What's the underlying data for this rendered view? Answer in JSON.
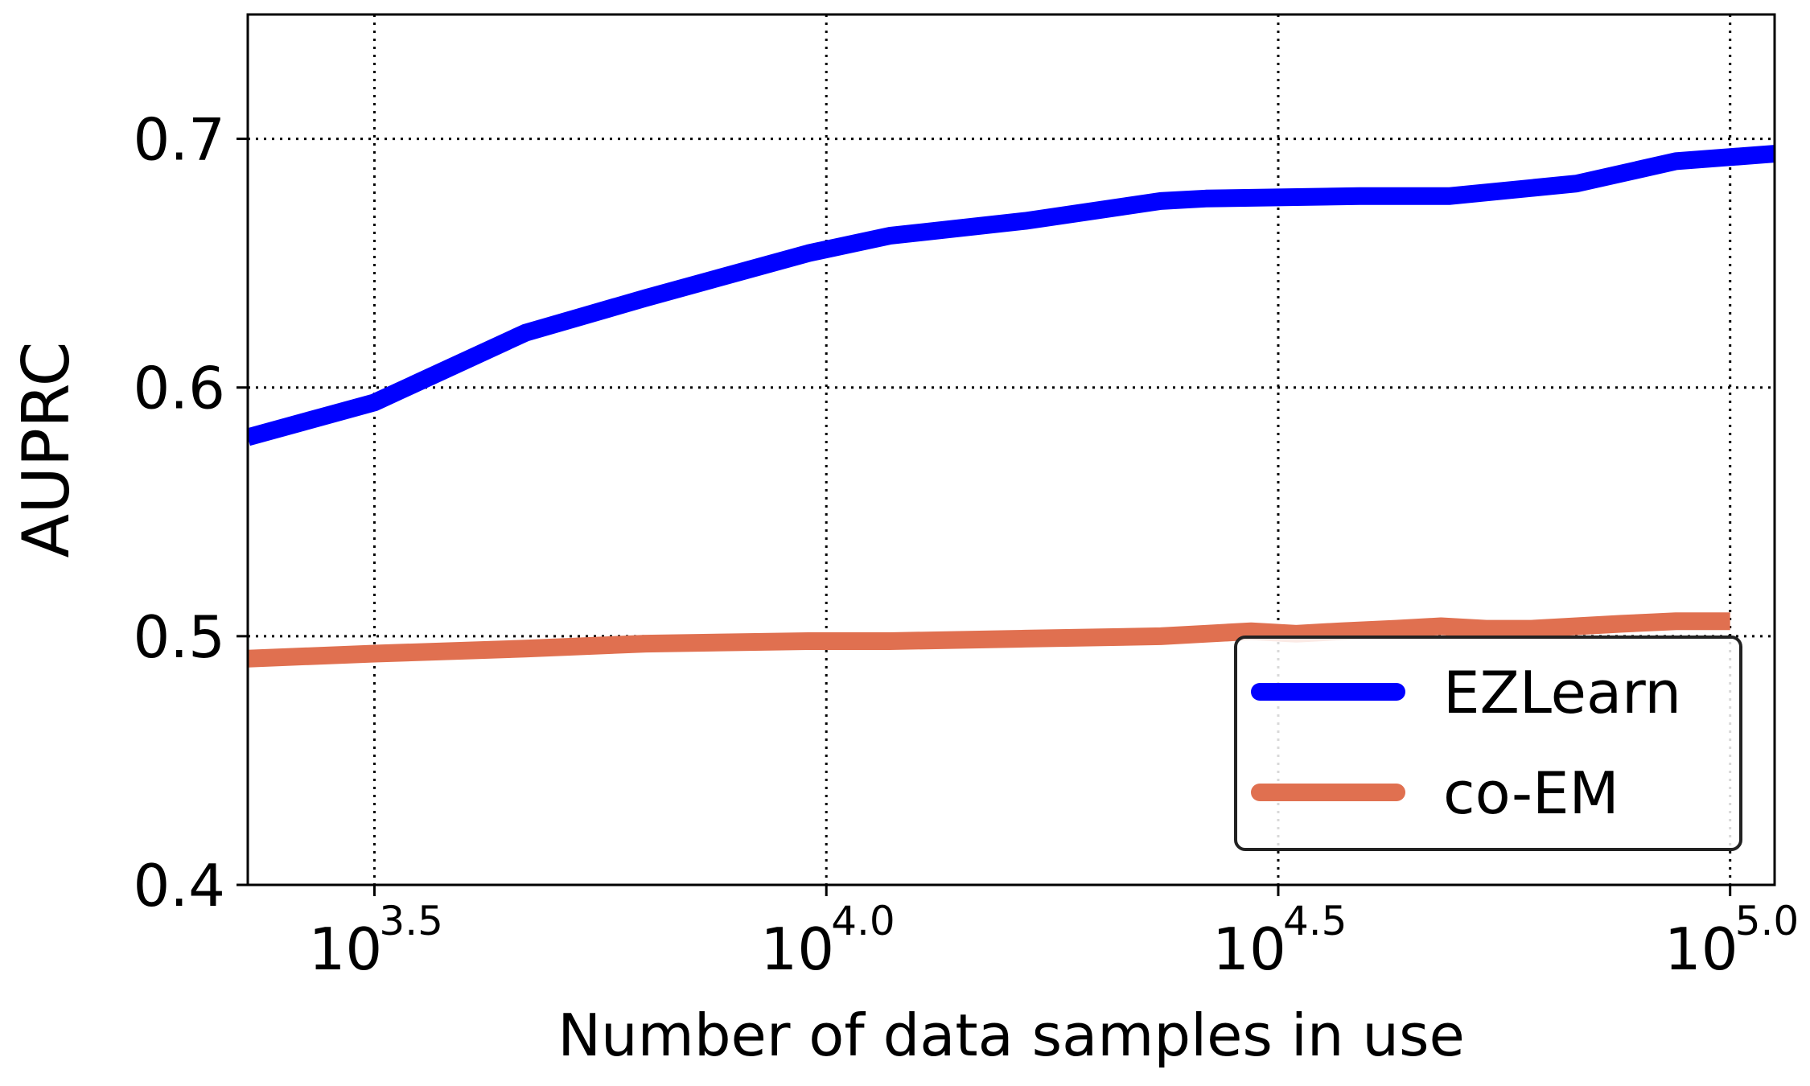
{
  "chart_data": {
    "type": "line",
    "title": "",
    "xlabel": "Number of data samples in use",
    "ylabel": "AUPRC",
    "x_scale": "log10",
    "xlim": [
      2290,
      112000
    ],
    "ylim": [
      0.4,
      0.75
    ],
    "x_ticks": [
      {
        "value": 3162,
        "base": "10",
        "exp": "3.5"
      },
      {
        "value": 10000,
        "base": "10",
        "exp": "4.0"
      },
      {
        "value": 31623,
        "base": "10",
        "exp": "4.5"
      },
      {
        "value": 100000,
        "base": "10",
        "exp": "5.0"
      }
    ],
    "y_ticks": [
      {
        "value": 0.4,
        "label": "0.4"
      },
      {
        "value": 0.5,
        "label": "0.5"
      },
      {
        "value": 0.6,
        "label": "0.6"
      },
      {
        "value": 0.7,
        "label": "0.7"
      }
    ],
    "grid": true,
    "legend_position": "lower-right",
    "series": [
      {
        "name": "EZLearn",
        "color": "#0000ff",
        "x": [
          2290,
          3162,
          4645,
          6310,
          9550,
          11750,
          16600,
          23440,
          26300,
          38900,
          48980,
          67600,
          87100,
          112000
        ],
        "y": [
          0.58,
          0.594,
          0.622,
          0.636,
          0.654,
          0.661,
          0.667,
          0.675,
          0.676,
          0.677,
          0.677,
          0.682,
          0.691,
          0.694
        ]
      },
      {
        "name": "co-EM",
        "color": "#e07050",
        "x": [
          2290,
          3162,
          4645,
          6310,
          9550,
          11750,
          16600,
          23440,
          26300,
          29510,
          33110,
          37150,
          42660,
          47860,
          53700,
          60260,
          67610,
          75860,
          87100,
          100000
        ],
        "y": [
          0.491,
          0.493,
          0.495,
          0.497,
          0.498,
          0.498,
          0.499,
          0.5,
          0.501,
          0.502,
          0.501,
          0.502,
          0.503,
          0.504,
          0.503,
          0.503,
          0.504,
          0.505,
          0.506,
          0.506
        ]
      }
    ]
  }
}
